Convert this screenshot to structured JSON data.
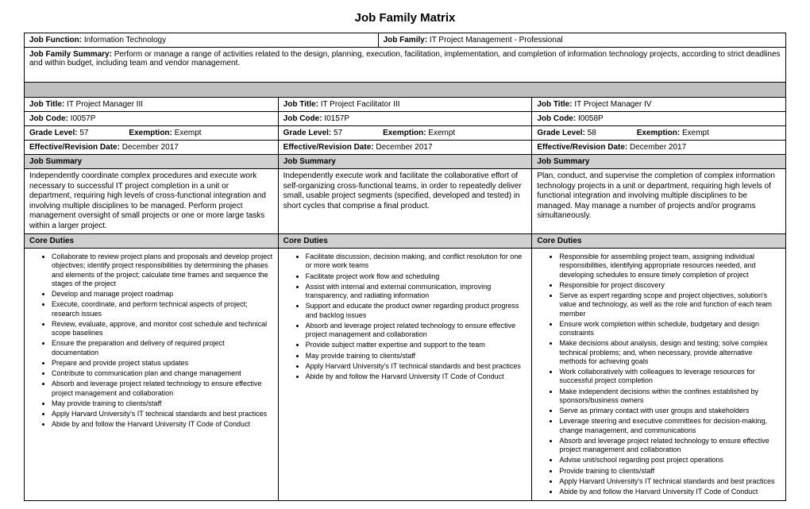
{
  "title": "Job Family Matrix",
  "header": {
    "jobFunctionLabel": "Job Function:",
    "jobFunction": " Information Technology",
    "jobFamilyLabel": "Job Family:",
    "jobFamily": " IT Project Management - Professional",
    "jobFamilySummaryLabel": "Job Family Summary:",
    "jobFamilySummary": " Perform or manage a range of activities related to the design, planning, execution, facilitation, implementation, and completion of information technology projects, according to strict deadlines and within budget, including team and vendor management."
  },
  "labels": {
    "jobTitle": "Job Title:",
    "jobCode": "Job Code:",
    "gradeLevel": "Grade Level:",
    "exemption": "Exemption:",
    "effectiveDate": "Effective/Revision Date:",
    "jobSummary": "Job Summary",
    "coreDuties": "Core Duties"
  },
  "cols": [
    {
      "jobTitle": " IT Project Manager III",
      "jobCode": " I0057P",
      "gradeLevel": " 57",
      "exemption": " Exempt",
      "effectiveDate": " December 2017",
      "summary": "Independently coordinate complex procedures and execute work necessary to successful IT project completion in a unit or department, requiring high levels of cross-functional integration and involving multiple disciplines to be managed. Perform project management oversight of small projects or one or more large tasks within a larger project.",
      "duties": [
        "Collaborate to review project plans and proposals and develop project objectives; identify project responsibilities by determining the phases and elements of the project; calculate time frames and sequence the stages of the project",
        "Develop and manage project roadmap",
        "Execute, coordinate, and perform technical aspects of project; research issues",
        "Review, evaluate, approve, and monitor cost schedule and technical scope baselines",
        "Ensure the preparation and delivery of required project documentation",
        "Prepare and provide project status updates",
        "Contribute to communication plan and change management",
        "Absorb and leverage project related technology to ensure effective project management and collaboration",
        "May provide training to clients/staff",
        "Apply Harvard University's IT technical standards and best practices",
        "Abide by and follow the Harvard University IT Code of Conduct"
      ]
    },
    {
      "jobTitle": " IT Project Facilitator III",
      "jobCode": " I0157P",
      "gradeLevel": " 57",
      "exemption": " Exempt",
      "effectiveDate": " December 2017",
      "summary": "Independently execute work and facilitate the collaborative effort of self-organizing cross-functional teams, in order to repeatedly deliver small, usable project segments (specified, developed and tested) in short cycles that comprise a final product.",
      "duties": [
        "Facilitate discussion, decision making, and conflict resolution for one or more work teams",
        "Facilitate project work flow and scheduling",
        "Assist with internal and external communication, improving transparency, and radiating information",
        "Support and educate the product owner regarding product progress and backlog issues",
        "Absorb and leverage project related technology to ensure effective project management and collaboration",
        "Provide subject matter expertise and support to the team",
        "May provide training to clients/staff",
        "Apply Harvard University's IT technical standards and best practices",
        "Abide by and follow the Harvard University IT Code of Conduct"
      ]
    },
    {
      "jobTitle": " IT Project Manager IV",
      "jobCode": " I0058P",
      "gradeLevel": " 58",
      "exemption": " Exempt",
      "effectiveDate": " December 2017",
      "summary": "Plan, conduct, and supervise the completion of complex information technology projects in a unit or department, requiring high levels of functional integration and involving multiple disciplines to be managed. May manage a number of projects and/or programs simultaneously.",
      "duties": [
        "Responsible for assembling project team, assigning individual responsibilities, identifying appropriate resources needed, and developing schedules to ensure timely completion of project",
        "Responsible for project discovery",
        "Serve as expert regarding scope and project objectives, solution's value and technology, as well as the role and function of each team member",
        "Ensure work completion within schedule, budgetary and design constraints",
        "Make decisions about analysis, design and testing; solve complex technical problems; and, when necessary, provide alternative methods for achieving goals",
        "Work collaboratively with colleagues to leverage resources for successful project completion",
        "Make independent decisions within the confines established by sponsors/business owners",
        "Serve as primary contact with user groups and stakeholders",
        "Leverage steering and executive committees for decision-making, change management, and communications",
        "Absorb and leverage project related technology to ensure effective project management and collaboration",
        "Advise unit/school regarding post project operations",
        "Provide training to clients/staff",
        "Apply Harvard University's IT technical standards and best practices",
        "Abide by and follow the Harvard University IT Code of Conduct"
      ]
    }
  ]
}
